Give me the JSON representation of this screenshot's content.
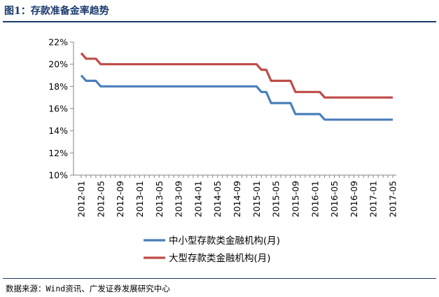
{
  "header": {
    "title": "图1：存款准备金率趋势"
  },
  "footer": {
    "source": "数据来源：Wind资讯、广发证券发展研究中心"
  },
  "colors": {
    "series_small": "#4a7ebb",
    "series_large": "#be4b48",
    "axis": "#868686",
    "heading": "#1a3a6e"
  },
  "chart_data": {
    "type": "line",
    "title": "",
    "xlabel": "",
    "ylabel": "",
    "ylim": [
      10,
      22
    ],
    "y_ticks": [
      "10%",
      "12%",
      "14%",
      "16%",
      "18%",
      "20%",
      "22%"
    ],
    "y_tick_values": [
      10,
      12,
      14,
      16,
      18,
      20,
      22
    ],
    "x_range": [
      "2012-01",
      "2017-05"
    ],
    "x_tick_labels": [
      "2012-01",
      "2012-05",
      "2012-09",
      "2013-01",
      "2013-05",
      "2013-09",
      "2014-01",
      "2014-05",
      "2014-09",
      "2015-01",
      "2015-05",
      "2015-09",
      "2016-01",
      "2016-05",
      "2016-09",
      "2017-01",
      "2017-05"
    ],
    "grid": false,
    "legend_position": "bottom",
    "series": [
      {
        "name": "中小型存款类金融机构(月)",
        "points": [
          [
            "2012-01",
            19.0
          ],
          [
            "2012-02",
            18.5
          ],
          [
            "2012-03",
            18.5
          ],
          [
            "2012-04",
            18.5
          ],
          [
            "2012-05",
            18.0
          ],
          [
            "2015-01",
            18.0
          ],
          [
            "2015-02",
            17.5
          ],
          [
            "2015-03",
            17.5
          ],
          [
            "2015-04",
            16.5
          ],
          [
            "2015-08",
            16.5
          ],
          [
            "2015-09",
            15.5
          ],
          [
            "2016-02",
            15.5
          ],
          [
            "2016-03",
            15.0
          ],
          [
            "2017-05",
            15.0
          ]
        ]
      },
      {
        "name": "大型存款类金融机构(月)",
        "points": [
          [
            "2012-01",
            21.0
          ],
          [
            "2012-02",
            20.5
          ],
          [
            "2012-03",
            20.5
          ],
          [
            "2012-04",
            20.5
          ],
          [
            "2012-05",
            20.0
          ],
          [
            "2015-01",
            20.0
          ],
          [
            "2015-02",
            19.5
          ],
          [
            "2015-03",
            19.5
          ],
          [
            "2015-04",
            18.5
          ],
          [
            "2015-08",
            18.5
          ],
          [
            "2015-09",
            17.5
          ],
          [
            "2016-02",
            17.5
          ],
          [
            "2016-03",
            17.0
          ],
          [
            "2017-05",
            17.0
          ]
        ]
      }
    ]
  }
}
